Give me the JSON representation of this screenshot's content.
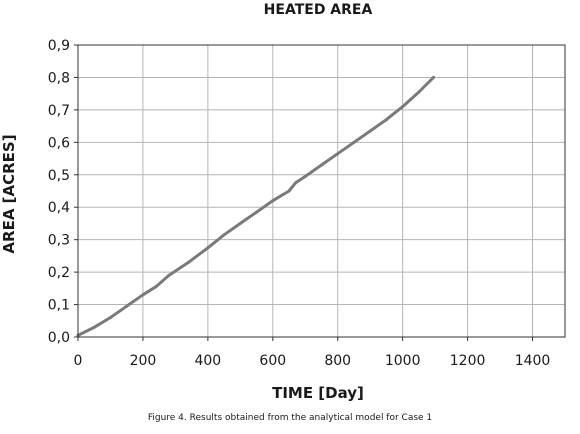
{
  "caption": "Figure 4. Results obtained from the analytical model for Case 1",
  "colors": {
    "line": "#7a7a7a",
    "grid": "#b5b5b5",
    "frame": "#333333",
    "text": "#1a1a1a"
  },
  "chart_data": {
    "type": "line",
    "title": "HEATED AREA",
    "xlabel": "TIME [Day]",
    "ylabel": "AREA [ACRES]",
    "xlim": [
      0,
      1500
    ],
    "ylim": [
      0,
      0.9
    ],
    "grid": true,
    "legend": "none",
    "x_ticks": [
      0,
      200,
      400,
      600,
      800,
      1000,
      1200,
      1400
    ],
    "x_tick_labels": [
      "0",
      "200",
      "400",
      "600",
      "800",
      "1000",
      "1200",
      "1400"
    ],
    "y_ticks": [
      0,
      0.1,
      0.2,
      0.3,
      0.4,
      0.5,
      0.6,
      0.7,
      0.8,
      0.9
    ],
    "y_tick_labels": [
      "0,0",
      "0,1",
      "0,2",
      "0,3",
      "0,4",
      "0,5",
      "0,6",
      "0,7",
      "0,8",
      "0,9"
    ],
    "series": [
      {
        "x": [
          0,
          50,
          100,
          150,
          200,
          240,
          280,
          340,
          400,
          450,
          500,
          550,
          600,
          650,
          670,
          700,
          750,
          800,
          850,
          900,
          950,
          1000,
          1050,
          1095
        ],
        "y": [
          0.005,
          0.03,
          0.06,
          0.095,
          0.13,
          0.155,
          0.19,
          0.23,
          0.275,
          0.315,
          0.35,
          0.385,
          0.42,
          0.45,
          0.475,
          0.495,
          0.53,
          0.565,
          0.6,
          0.635,
          0.67,
          0.71,
          0.755,
          0.8
        ]
      }
    ]
  }
}
